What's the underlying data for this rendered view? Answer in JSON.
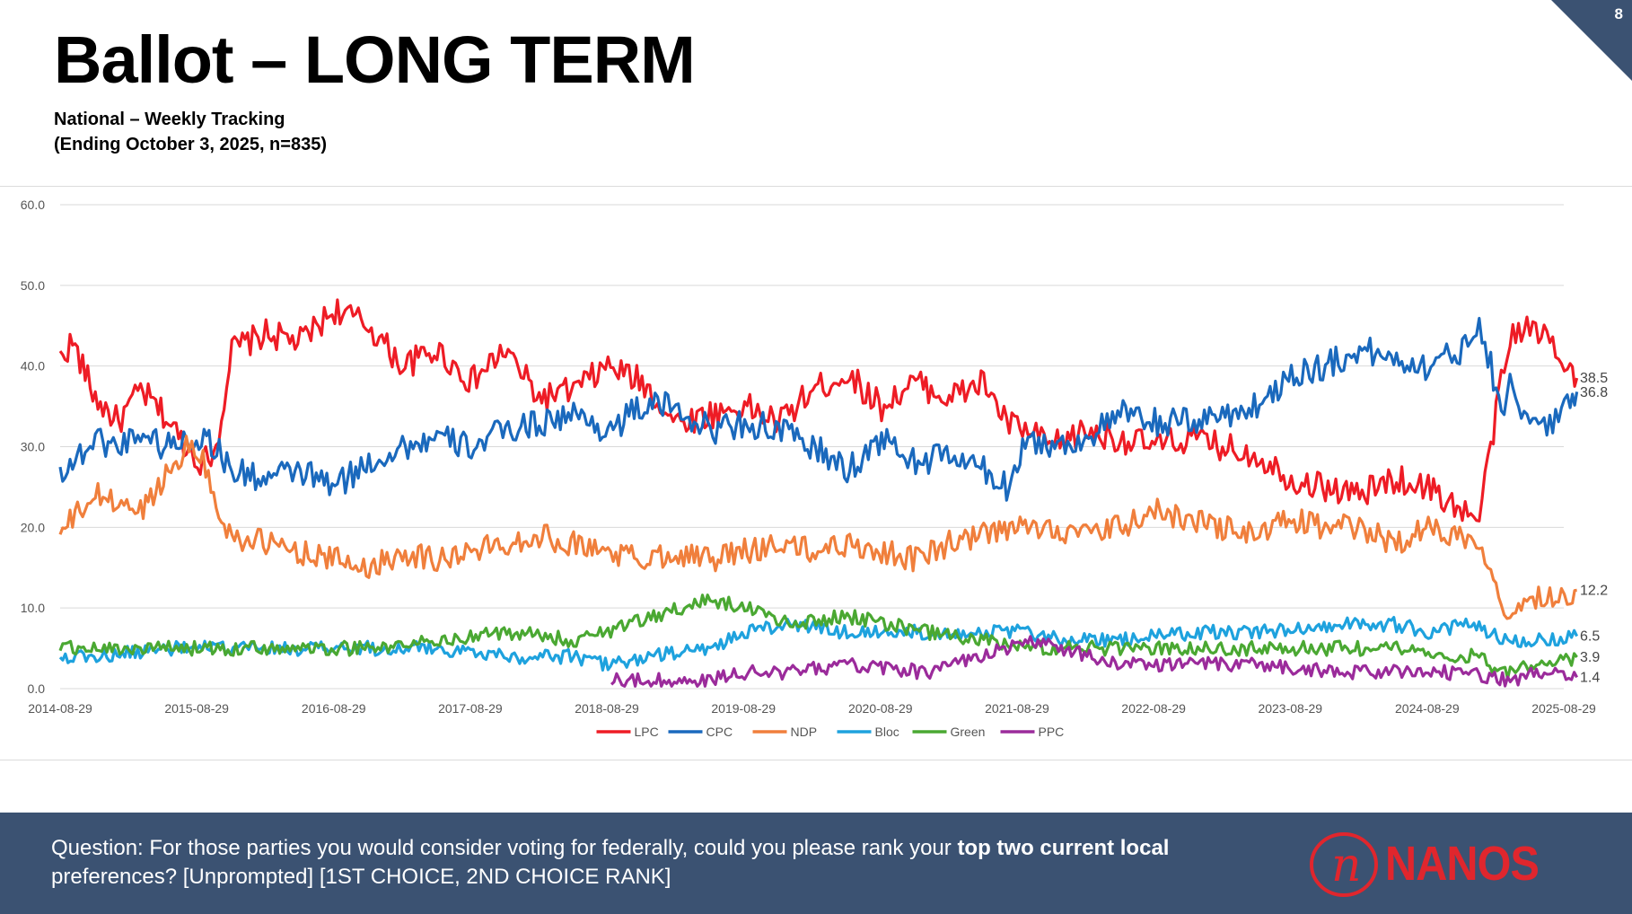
{
  "slide": {
    "title": "Ballot – LONG TERM",
    "subtitle_line1": "National – Weekly Tracking",
    "subtitle_line2": "(Ending October 3, 2025, n=835)",
    "page_number": "8",
    "corner_color": "#3b5272"
  },
  "footer": {
    "question_part1": "Question: For those parties you would consider voting for federally, could you please rank your ",
    "question_bold": "top two current local",
    "question_part2": "preferences? [Unprompted] [1ST CHOICE, 2ND CHOICE RANK]",
    "logo_text": "NANOS",
    "logo_mark": "n",
    "background": "#3b5272",
    "logo_color": "#e0262d"
  },
  "chart_data": {
    "type": "line",
    "title": "",
    "xlabel": "",
    "ylabel": "",
    "ylim": [
      0,
      60
    ],
    "yticks": [
      "0.0",
      "10.0",
      "20.0",
      "30.0",
      "40.0",
      "50.0",
      "60.0"
    ],
    "xlim": [
      "2014-08-29",
      "2025-10-03"
    ],
    "xticks": [
      "2014-08-29",
      "2015-08-29",
      "2016-08-29",
      "2017-08-29",
      "2018-08-29",
      "2019-08-29",
      "2020-08-29",
      "2021-08-29",
      "2022-08-29",
      "2023-08-29",
      "2024-08-29",
      "2025-08-29"
    ],
    "grid": true,
    "legend_position": "bottom",
    "series": [
      {
        "name": "LPC",
        "color": "#ee1c25",
        "end_label": "38.5",
        "points": [
          [
            "2014-08-29",
            41
          ],
          [
            "2014-10-01",
            43
          ],
          [
            "2014-12-01",
            36
          ],
          [
            "2015-02-01",
            33
          ],
          [
            "2015-04-01",
            37
          ],
          [
            "2015-06-01",
            34
          ],
          [
            "2015-08-01",
            30
          ],
          [
            "2015-09-15",
            28
          ],
          [
            "2015-10-20",
            30
          ],
          [
            "2015-12-01",
            42
          ],
          [
            "2016-03-01",
            44
          ],
          [
            "2016-06-01",
            43
          ],
          [
            "2016-09-01",
            47
          ],
          [
            "2016-12-01",
            45
          ],
          [
            "2017-03-01",
            40
          ],
          [
            "2017-06-01",
            42
          ],
          [
            "2017-09-01",
            38
          ],
          [
            "2017-12-01",
            42
          ],
          [
            "2018-03-01",
            36
          ],
          [
            "2018-06-01",
            37
          ],
          [
            "2018-09-01",
            40
          ],
          [
            "2018-12-01",
            38
          ],
          [
            "2019-03-01",
            33
          ],
          [
            "2019-06-01",
            34
          ],
          [
            "2019-09-01",
            35
          ],
          [
            "2019-12-01",
            33
          ],
          [
            "2020-03-01",
            37
          ],
          [
            "2020-06-01",
            39
          ],
          [
            "2020-09-01",
            35
          ],
          [
            "2020-12-01",
            38
          ],
          [
            "2021-03-01",
            36
          ],
          [
            "2021-06-01",
            38
          ],
          [
            "2021-08-01",
            33
          ],
          [
            "2021-09-20",
            32
          ],
          [
            "2021-12-01",
            30
          ],
          [
            "2022-03-01",
            32
          ],
          [
            "2022-06-01",
            31
          ],
          [
            "2022-09-01",
            30
          ],
          [
            "2022-12-01",
            31
          ],
          [
            "2023-03-01",
            30
          ],
          [
            "2023-06-01",
            29
          ],
          [
            "2023-09-01",
            26
          ],
          [
            "2023-12-01",
            25
          ],
          [
            "2024-03-01",
            24
          ],
          [
            "2024-06-01",
            26
          ],
          [
            "2024-09-01",
            25
          ],
          [
            "2024-12-01",
            22
          ],
          [
            "2025-01-15",
            21
          ],
          [
            "2025-02-15",
            30
          ],
          [
            "2025-03-15",
            38
          ],
          [
            "2025-04-15",
            44
          ],
          [
            "2025-05-15",
            45
          ],
          [
            "2025-06-15",
            44
          ],
          [
            "2025-07-15",
            44
          ],
          [
            "2025-08-15",
            42
          ],
          [
            "2025-09-15",
            40
          ],
          [
            "2025-10-03",
            38.5
          ]
        ]
      },
      {
        "name": "CPC",
        "color": "#1a69bd",
        "end_label": "36.8",
        "points": [
          [
            "2014-08-29",
            27
          ],
          [
            "2014-10-01",
            28
          ],
          [
            "2014-12-01",
            31
          ],
          [
            "2015-02-01",
            30
          ],
          [
            "2015-04-01",
            32
          ],
          [
            "2015-06-01",
            30
          ],
          [
            "2015-08-01",
            31
          ],
          [
            "2015-10-01",
            31
          ],
          [
            "2015-12-01",
            27
          ],
          [
            "2016-03-01",
            26
          ],
          [
            "2016-06-01",
            27
          ],
          [
            "2016-09-01",
            25
          ],
          [
            "2016-12-01",
            28
          ],
          [
            "2017-03-01",
            30
          ],
          [
            "2017-06-01",
            31
          ],
          [
            "2017-09-01",
            30
          ],
          [
            "2017-12-01",
            32
          ],
          [
            "2018-03-01",
            33
          ],
          [
            "2018-06-01",
            34
          ],
          [
            "2018-09-01",
            32
          ],
          [
            "2018-12-01",
            35
          ],
          [
            "2019-03-01",
            35
          ],
          [
            "2019-06-01",
            32
          ],
          [
            "2019-09-01",
            33
          ],
          [
            "2019-12-01",
            32
          ],
          [
            "2020-03-01",
            30
          ],
          [
            "2020-06-01",
            27
          ],
          [
            "2020-09-01",
            31
          ],
          [
            "2020-12-01",
            28
          ],
          [
            "2021-03-01",
            29
          ],
          [
            "2021-06-01",
            27
          ],
          [
            "2021-08-01",
            25
          ],
          [
            "2021-09-20",
            31
          ],
          [
            "2021-12-01",
            30
          ],
          [
            "2022-03-01",
            31
          ],
          [
            "2022-06-01",
            34
          ],
          [
            "2022-09-01",
            33
          ],
          [
            "2022-12-01",
            33
          ],
          [
            "2023-03-01",
            34
          ],
          [
            "2023-06-01",
            35
          ],
          [
            "2023-09-01",
            39
          ],
          [
            "2023-12-01",
            40
          ],
          [
            "2024-03-01",
            42
          ],
          [
            "2024-06-01",
            41
          ],
          [
            "2024-09-01",
            40
          ],
          [
            "2024-12-01",
            42
          ],
          [
            "2025-01-15",
            46
          ],
          [
            "2025-02-15",
            40
          ],
          [
            "2025-03-15",
            35
          ],
          [
            "2025-04-15",
            38
          ],
          [
            "2025-05-15",
            34
          ],
          [
            "2025-06-15",
            32
          ],
          [
            "2025-07-15",
            33
          ],
          [
            "2025-08-15",
            34
          ],
          [
            "2025-09-15",
            35
          ],
          [
            "2025-10-03",
            36.8
          ]
        ]
      },
      {
        "name": "NDP",
        "color": "#f07f3c",
        "end_label": "12.2",
        "points": [
          [
            "2014-08-29",
            19
          ],
          [
            "2014-10-01",
            21
          ],
          [
            "2014-12-01",
            24
          ],
          [
            "2015-02-01",
            23
          ],
          [
            "2015-04-01",
            22
          ],
          [
            "2015-06-01",
            26
          ],
          [
            "2015-08-01",
            30
          ],
          [
            "2015-09-15",
            29
          ],
          [
            "2015-10-20",
            22
          ],
          [
            "2015-12-01",
            19
          ],
          [
            "2016-03-01",
            18
          ],
          [
            "2016-06-01",
            17
          ],
          [
            "2016-09-01",
            16
          ],
          [
            "2016-12-01",
            15
          ],
          [
            "2017-03-01",
            17
          ],
          [
            "2017-06-01",
            16
          ],
          [
            "2017-09-01",
            17
          ],
          [
            "2017-12-01",
            18
          ],
          [
            "2018-03-01",
            19
          ],
          [
            "2018-06-01",
            18
          ],
          [
            "2018-09-01",
            17
          ],
          [
            "2018-12-01",
            16
          ],
          [
            "2019-03-01",
            17
          ],
          [
            "2019-06-01",
            16
          ],
          [
            "2019-09-01",
            17
          ],
          [
            "2019-12-01",
            18
          ],
          [
            "2020-03-01",
            17
          ],
          [
            "2020-06-01",
            18
          ],
          [
            "2020-09-01",
            17
          ],
          [
            "2020-12-01",
            16
          ],
          [
            "2021-03-01",
            18
          ],
          [
            "2021-06-01",
            19
          ],
          [
            "2021-09-20",
            20
          ],
          [
            "2021-12-01",
            20
          ],
          [
            "2022-03-01",
            19
          ],
          [
            "2022-06-01",
            20
          ],
          [
            "2022-09-01",
            22
          ],
          [
            "2022-12-01",
            21
          ],
          [
            "2023-03-01",
            20
          ],
          [
            "2023-06-01",
            19
          ],
          [
            "2023-09-01",
            21
          ],
          [
            "2023-12-01",
            20
          ],
          [
            "2024-03-01",
            20
          ],
          [
            "2024-06-01",
            18
          ],
          [
            "2024-09-01",
            20
          ],
          [
            "2024-12-01",
            19
          ],
          [
            "2025-01-15",
            18
          ],
          [
            "2025-02-15",
            16
          ],
          [
            "2025-03-15",
            11
          ],
          [
            "2025-04-15",
            8
          ],
          [
            "2025-05-15",
            12
          ],
          [
            "2025-06-15",
            11
          ],
          [
            "2025-07-15",
            12
          ],
          [
            "2025-08-15",
            11
          ],
          [
            "2025-09-15",
            12
          ],
          [
            "2025-10-03",
            12.2
          ]
        ]
      },
      {
        "name": "Bloc",
        "color": "#1ea2de",
        "end_label": "6.5",
        "points": [
          [
            "2014-08-29",
            4
          ],
          [
            "2015-01-01",
            4
          ],
          [
            "2015-06-01",
            5
          ],
          [
            "2016-01-01",
            5
          ],
          [
            "2016-06-01",
            5
          ],
          [
            "2017-01-01",
            5
          ],
          [
            "2017-06-01",
            5
          ],
          [
            "2018-01-01",
            4
          ],
          [
            "2018-06-01",
            4
          ],
          [
            "2018-09-01",
            3
          ],
          [
            "2019-01-01",
            4
          ],
          [
            "2019-06-01",
            5
          ],
          [
            "2019-09-01",
            7
          ],
          [
            "2020-01-01",
            8
          ],
          [
            "2020-06-01",
            7
          ],
          [
            "2021-01-01",
            7
          ],
          [
            "2021-06-01",
            7
          ],
          [
            "2021-09-20",
            7
          ],
          [
            "2022-01-01",
            6
          ],
          [
            "2022-06-01",
            6
          ],
          [
            "2023-01-01",
            7
          ],
          [
            "2023-06-01",
            7
          ],
          [
            "2024-01-01",
            8
          ],
          [
            "2024-06-01",
            8
          ],
          [
            "2024-09-01",
            7
          ],
          [
            "2025-01-01",
            8
          ],
          [
            "2025-04-01",
            6
          ],
          [
            "2025-07-01",
            6
          ],
          [
            "2025-10-03",
            6.5
          ]
        ]
      },
      {
        "name": "Green",
        "color": "#4aa832",
        "end_label": "3.9",
        "points": [
          [
            "2014-08-29",
            5
          ],
          [
            "2015-01-01",
            5
          ],
          [
            "2015-06-01",
            5
          ],
          [
            "2016-01-01",
            5
          ],
          [
            "2016-06-01",
            5
          ],
          [
            "2017-01-01",
            5
          ],
          [
            "2017-06-01",
            6
          ],
          [
            "2018-01-01",
            7
          ],
          [
            "2018-06-01",
            6
          ],
          [
            "2018-09-01",
            7
          ],
          [
            "2019-01-01",
            9
          ],
          [
            "2019-06-01",
            11
          ],
          [
            "2019-09-01",
            10
          ],
          [
            "2020-01-01",
            8
          ],
          [
            "2020-06-01",
            9
          ],
          [
            "2021-01-01",
            7
          ],
          [
            "2021-06-01",
            6
          ],
          [
            "2021-09-20",
            5
          ],
          [
            "2022-01-01",
            5
          ],
          [
            "2022-06-01",
            5
          ],
          [
            "2023-01-01",
            5
          ],
          [
            "2023-06-01",
            5
          ],
          [
            "2024-01-01",
            5
          ],
          [
            "2024-06-01",
            5
          ],
          [
            "2024-09-01",
            4
          ],
          [
            "2025-01-01",
            4
          ],
          [
            "2025-04-01",
            2
          ],
          [
            "2025-07-01",
            3
          ],
          [
            "2025-10-03",
            3.9
          ]
        ]
      },
      {
        "name": "PPC",
        "color": "#9b2b9b",
        "end_label": "1.4",
        "points": [
          [
            "2018-09-10",
            1
          ],
          [
            "2019-01-01",
            1
          ],
          [
            "2019-06-01",
            1
          ],
          [
            "2019-09-01",
            2
          ],
          [
            "2020-01-01",
            2
          ],
          [
            "2020-06-01",
            3
          ],
          [
            "2021-01-01",
            2
          ],
          [
            "2021-06-01",
            4
          ],
          [
            "2021-09-20",
            6
          ],
          [
            "2022-01-01",
            5
          ],
          [
            "2022-06-01",
            3
          ],
          [
            "2023-01-01",
            3
          ],
          [
            "2023-06-01",
            3
          ],
          [
            "2024-01-01",
            2
          ],
          [
            "2024-06-01",
            2
          ],
          [
            "2024-09-01",
            2
          ],
          [
            "2025-01-01",
            2
          ],
          [
            "2025-04-01",
            1
          ],
          [
            "2025-07-01",
            2
          ],
          [
            "2025-10-03",
            1.4
          ]
        ]
      }
    ]
  }
}
